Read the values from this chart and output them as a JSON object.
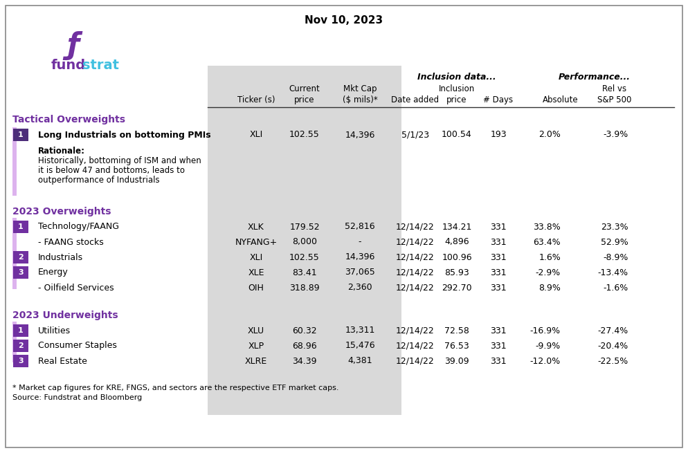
{
  "title": "Nov 10, 2023",
  "inclusion_header": "Inclusion data...",
  "performance_header": "Performance...",
  "sections": [
    {
      "name": "Tactical Overweights",
      "color": "#7030a0",
      "rows": [
        {
          "num": "1",
          "name": "Long Industrials on bottoming PMIs",
          "ticker": "XLI",
          "current_price": "102.55",
          "mkt_cap": "14,396",
          "date_added": "5/1/23",
          "inclusion_price": "100.54",
          "days": "193",
          "absolute": "2.0%",
          "rel_vs": "-3.9%",
          "is_bold": true,
          "rationale": [
            "Rationale:",
            "Historically, bottoming of ISM and when",
            "it is below 47 and bottoms, leads to",
            "outperformance of Industrials"
          ],
          "num_bg": "#4d2d7a"
        }
      ]
    },
    {
      "name": "2023 Overweights",
      "color": "#7030a0",
      "rows": [
        {
          "num": "1",
          "name": "Technology/FAANG",
          "ticker": "XLK",
          "current_price": "179.52",
          "mkt_cap": "52,816",
          "date_added": "12/14/22",
          "inclusion_price": "134.21",
          "days": "331",
          "absolute": "33.8%",
          "rel_vs": "23.3%",
          "is_bold": false,
          "rationale": null,
          "num_bg": "#7030a0"
        },
        {
          "num": "",
          "name": "- FAANG stocks",
          "ticker": "NYFANG+",
          "current_price": "8,000",
          "mkt_cap": "-",
          "date_added": "12/14/22",
          "inclusion_price": "4,896",
          "days": "331",
          "absolute": "63.4%",
          "rel_vs": "52.9%",
          "is_bold": false,
          "rationale": null,
          "num_bg": null
        },
        {
          "num": "2",
          "name": "Industrials",
          "ticker": "XLI",
          "current_price": "102.55",
          "mkt_cap": "14,396",
          "date_added": "12/14/22",
          "inclusion_price": "100.96",
          "days": "331",
          "absolute": "1.6%",
          "rel_vs": "-8.9%",
          "is_bold": false,
          "rationale": null,
          "num_bg": "#7030a0"
        },
        {
          "num": "3",
          "name": "Energy",
          "ticker": "XLE",
          "current_price": "83.41",
          "mkt_cap": "37,065",
          "date_added": "12/14/22",
          "inclusion_price": "85.93",
          "days": "331",
          "absolute": "-2.9%",
          "rel_vs": "-13.4%",
          "is_bold": false,
          "rationale": null,
          "num_bg": "#7030a0"
        },
        {
          "num": "",
          "name": "- Oilfield Services",
          "ticker": "OIH",
          "current_price": "318.89",
          "mkt_cap": "2,360",
          "date_added": "12/14/22",
          "inclusion_price": "292.70",
          "days": "331",
          "absolute": "8.9%",
          "rel_vs": "-1.6%",
          "is_bold": false,
          "rationale": null,
          "num_bg": null
        }
      ]
    },
    {
      "name": "2023 Underweights",
      "color": "#7030a0",
      "rows": [
        {
          "num": "1",
          "name": "Utilities",
          "ticker": "XLU",
          "current_price": "60.32",
          "mkt_cap": "13,311",
          "date_added": "12/14/22",
          "inclusion_price": "72.58",
          "days": "331",
          "absolute": "-16.9%",
          "rel_vs": "-27.4%",
          "is_bold": false,
          "rationale": null,
          "num_bg": "#7030a0"
        },
        {
          "num": "2",
          "name": "Consumer Staples",
          "ticker": "XLP",
          "current_price": "68.96",
          "mkt_cap": "15,476",
          "date_added": "12/14/22",
          "inclusion_price": "76.53",
          "days": "331",
          "absolute": "-9.9%",
          "rel_vs": "-20.4%",
          "is_bold": false,
          "rationale": null,
          "num_bg": "#7030a0"
        },
        {
          "num": "3",
          "name": "Real Estate",
          "ticker": "XLRE",
          "current_price": "34.39",
          "mkt_cap": "4,381",
          "date_added": "12/14/22",
          "inclusion_price": "39.09",
          "days": "331",
          "absolute": "-12.0%",
          "rel_vs": "-22.5%",
          "is_bold": false,
          "rationale": null,
          "num_bg": "#7030a0"
        }
      ]
    }
  ],
  "footnote1": "* Market cap figures for KRE, FNGS, and sectors are the respective ETF market caps.",
  "footnote2": "Source: Fundstrat and Bloomberg",
  "bg_color": "#ffffff",
  "border_color": "#888888",
  "shaded_col_color": "#d9d9d9",
  "purple_bar_color": "#ddb3ee",
  "num_box_color": "#7030a0",
  "num_box_color_dark": "#4d2d7a",
  "fundstrat_purple": "#7030a0",
  "fundstrat_blue": "#40c0e0",
  "col_divider_color": "#333333"
}
